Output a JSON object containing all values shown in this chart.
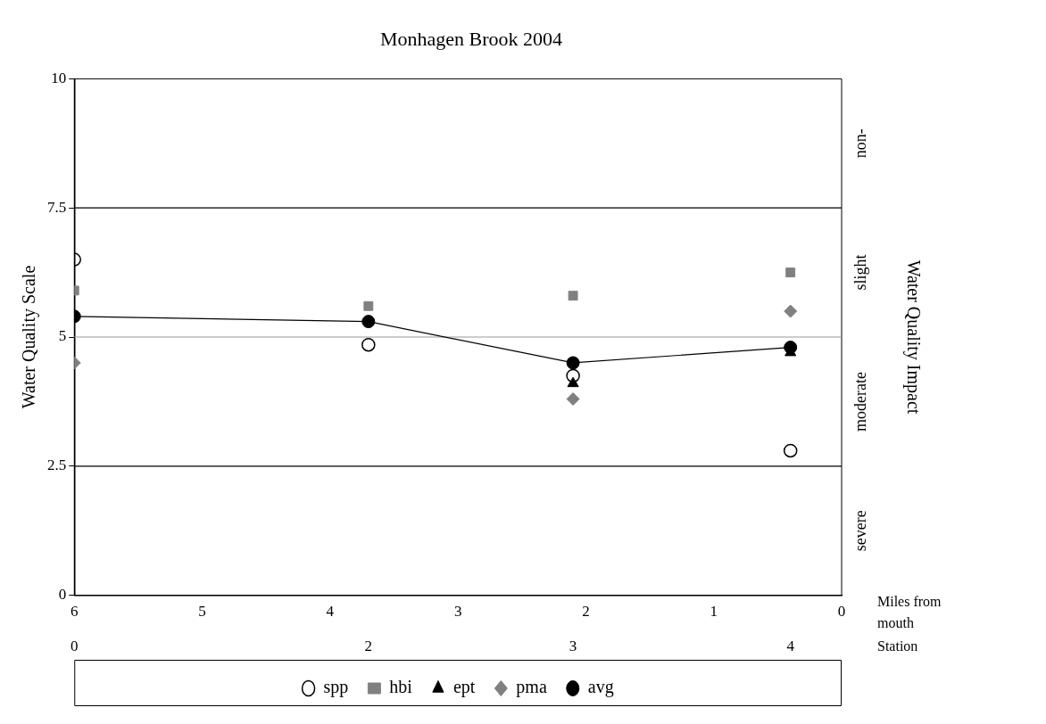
{
  "chart_data": {
    "type": "scatter",
    "title": "Monhagen Brook 2004",
    "xlabel": "Miles from mouth",
    "ylabel": "Water Quality Scale",
    "y2label": "Water Quality Impact",
    "x": [
      6,
      3.7,
      2.1,
      0.4
    ],
    "series": [
      {
        "name": "spp",
        "type": "scatter",
        "marker": "circle",
        "color": "#000000",
        "values": [
          6.5,
          4.85,
          4.25,
          2.8
        ]
      },
      {
        "name": "hbi",
        "type": "scatter",
        "marker": "square",
        "color": "#808080",
        "values": [
          5.9,
          5.6,
          5.8,
          6.25
        ]
      },
      {
        "name": "ept",
        "type": "scatter",
        "marker": "triangle",
        "color": "#000000",
        "values": [
          null,
          null,
          4.1,
          4.7
        ]
      },
      {
        "name": "pma",
        "type": "scatter",
        "marker": "diamond",
        "color": "#808080",
        "values": [
          4.5,
          null,
          3.8,
          5.5
        ]
      },
      {
        "name": "avg",
        "type": "line",
        "marker": "circle",
        "color": "#000000",
        "values": [
          5.4,
          5.3,
          4.5,
          4.8
        ]
      }
    ],
    "xlim": [
      6,
      0
    ],
    "xticks": [
      6,
      5,
      4,
      3,
      2,
      1,
      0
    ],
    "ylim": [
      0,
      10
    ],
    "yticks": [
      0,
      2.5,
      5,
      7.5,
      10
    ],
    "ref_lines": [
      {
        "axis": "y",
        "value": 2.5,
        "color": "#000000"
      },
      {
        "axis": "y",
        "value": 5,
        "color": "#999999"
      },
      {
        "axis": "y",
        "value": 7.5,
        "color": "#000000"
      }
    ],
    "annotations": [
      "non-",
      "slight",
      "moderate",
      "severe",
      "0",
      "2",
      "3",
      "4",
      "Station"
    ],
    "grid": false,
    "legend": "bottom"
  }
}
